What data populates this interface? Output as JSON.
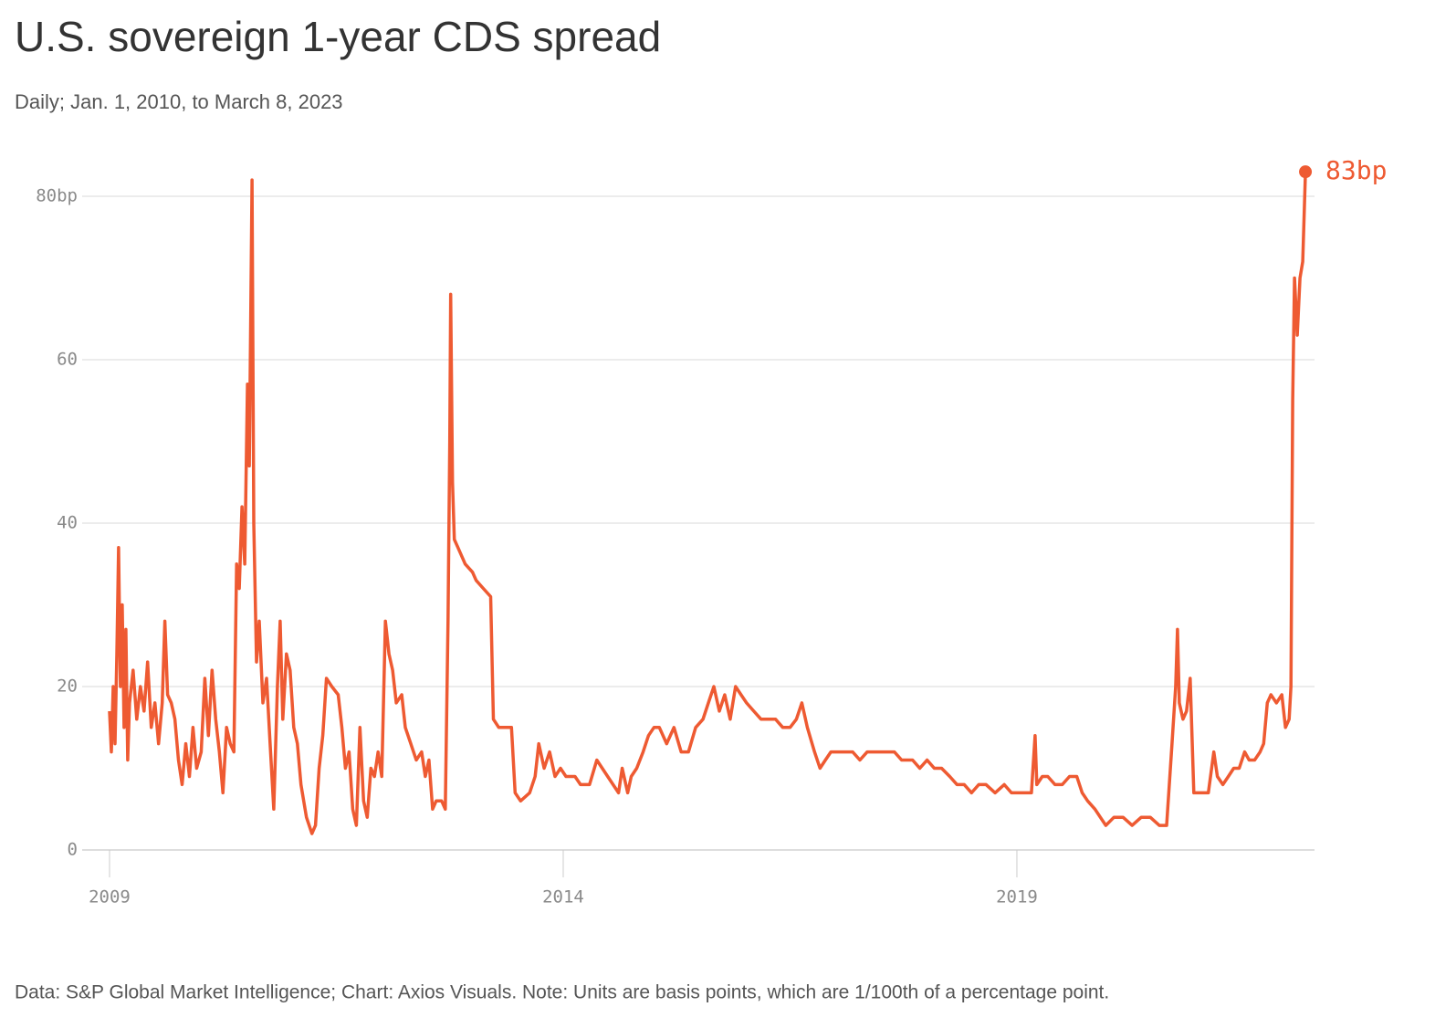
{
  "chart_data": {
    "type": "line",
    "title": "U.S. sovereign 1-year CDS spread",
    "subtitle": "Daily; Jan. 1, 2010, to March 8, 2023",
    "source": "Data: S&P Global Market Intelligence; Chart: Axios Visuals. Note: Units are basis points, which are 1/100th of a percentage point.",
    "end_label": "83bp",
    "color": "#ee5a32",
    "grid": true,
    "xlim": [
      2009,
      2022.28
    ],
    "xticks": [
      2009,
      2014,
      2019
    ],
    "ylim": [
      0,
      80
    ],
    "yticks": [
      0,
      20,
      40,
      60,
      {
        "value": 80,
        "label": "80bp"
      }
    ],
    "x": [
      2009.0,
      2009.02,
      2009.04,
      2009.06,
      2009.08,
      2009.1,
      2009.12,
      2009.14,
      2009.16,
      2009.18,
      2009.2,
      2009.22,
      2009.26,
      2009.3,
      2009.34,
      2009.38,
      2009.42,
      2009.46,
      2009.5,
      2009.54,
      2009.58,
      2009.61,
      2009.64,
      2009.68,
      2009.72,
      2009.76,
      2009.8,
      2009.84,
      2009.88,
      2009.92,
      2009.96,
      2010.01,
      2010.05,
      2010.09,
      2010.13,
      2010.17,
      2010.21,
      2010.25,
      2010.29,
      2010.33,
      2010.37,
      2010.4,
      2010.43,
      2010.46,
      2010.49,
      2010.52,
      2010.54,
      2010.57,
      2010.59,
      2010.62,
      2010.65,
      2010.69,
      2010.73,
      2010.77,
      2010.81,
      2010.85,
      2010.88,
      2010.91,
      2010.95,
      2010.99,
      2011.03,
      2011.07,
      2011.11,
      2011.17,
      2011.23,
      2011.27,
      2011.31,
      2011.35,
      2011.39,
      2011.45,
      2011.52,
      2011.56,
      2011.6,
      2011.64,
      2011.68,
      2011.72,
      2011.76,
      2011.8,
      2011.84,
      2011.88,
      2011.92,
      2011.96,
      2012.0,
      2012.04,
      2012.08,
      2012.12,
      2012.16,
      2012.22,
      2012.26,
      2012.32,
      2012.38,
      2012.44,
      2012.48,
      2012.52,
      2012.56,
      2012.6,
      2012.66,
      2012.7,
      2012.73,
      2012.75,
      2012.76,
      2012.78,
      2012.8,
      2012.84,
      2012.92,
      2013.0,
      2013.04,
      2013.12,
      2013.2,
      2013.23,
      2013.29,
      2013.43,
      2013.47,
      2013.53,
      2013.63,
      2013.69,
      2013.73,
      2013.79,
      2013.85,
      2013.91,
      2013.97,
      2014.03,
      2014.13,
      2014.19,
      2014.29,
      2014.37,
      2014.49,
      2014.61,
      2014.65,
      2014.71,
      2014.75,
      2014.81,
      2014.88,
      2014.94,
      2015.0,
      2015.06,
      2015.14,
      2015.22,
      2015.3,
      2015.38,
      2015.46,
      2015.54,
      2015.6,
      2015.66,
      2015.72,
      2015.78,
      2015.84,
      2015.9,
      2015.96,
      2016.02,
      2016.1,
      2016.18,
      2016.26,
      2016.34,
      2016.42,
      2016.5,
      2016.57,
      2016.63,
      2016.69,
      2016.77,
      2016.83,
      2016.89,
      2016.95,
      2017.03,
      2017.11,
      2017.19,
      2017.27,
      2017.35,
      2017.45,
      2017.55,
      2017.65,
      2017.73,
      2017.79,
      2017.85,
      2017.93,
      2018.01,
      2018.09,
      2018.17,
      2018.26,
      2018.34,
      2018.42,
      2018.5,
      2018.58,
      2018.66,
      2018.76,
      2018.86,
      2018.94,
      2019.02,
      2019.1,
      2019.16,
      2019.2,
      2019.22,
      2019.28,
      2019.34,
      2019.42,
      2019.5,
      2019.58,
      2019.66,
      2019.72,
      2019.78,
      2019.86,
      2019.92,
      2019.98,
      2020.07,
      2020.17,
      2020.27,
      2020.37,
      2020.47,
      2020.57,
      2020.65,
      2020.71,
      2020.75,
      2020.77,
      2020.79,
      2020.83,
      2020.87,
      2020.91,
      2020.95,
      2021.03,
      2021.11,
      2021.17,
      2021.21,
      2021.27,
      2021.33,
      2021.39,
      2021.45,
      2021.51,
      2021.56,
      2021.62,
      2021.68,
      2021.72,
      2021.76,
      2021.8,
      2021.86,
      2021.92,
      2021.96,
      2022.0,
      2022.02,
      2022.04,
      2022.06,
      2022.09,
      2022.12,
      2022.15,
      2022.18
    ],
    "values": [
      17,
      12,
      20,
      13,
      24,
      37,
      20,
      30,
      15,
      27,
      11,
      18,
      22,
      16,
      20,
      17,
      23,
      15,
      18,
      13,
      18,
      28,
      19,
      18,
      16,
      11,
      8,
      13,
      9,
      15,
      10,
      12,
      21,
      14,
      22,
      16,
      12,
      7,
      15,
      13,
      12,
      35,
      32,
      42,
      35,
      57,
      47,
      82,
      40,
      23,
      28,
      18,
      21,
      13,
      5,
      20,
      28,
      16,
      24,
      22,
      15,
      13,
      8,
      4,
      2,
      3,
      10,
      14,
      21,
      20,
      19,
      15,
      10,
      12,
      5,
      3,
      15,
      6,
      4,
      10,
      9,
      12,
      9,
      28,
      24,
      22,
      18,
      19,
      15,
      13,
      11,
      12,
      9,
      11,
      5,
      6,
      6,
      5,
      28,
      50,
      68,
      45,
      38,
      37,
      35,
      34,
      33,
      32,
      31,
      16,
      15,
      15,
      7,
      6,
      7,
      9,
      13,
      10,
      12,
      9,
      10,
      9,
      9,
      8,
      8,
      11,
      9,
      7,
      10,
      7,
      9,
      10,
      12,
      14,
      15,
      15,
      13,
      15,
      12,
      12,
      15,
      16,
      18,
      20,
      17,
      19,
      16,
      20,
      19,
      18,
      17,
      16,
      16,
      16,
      15,
      15,
      16,
      18,
      15,
      12,
      10,
      11,
      12,
      12,
      12,
      12,
      11,
      12,
      12,
      12,
      12,
      11,
      11,
      11,
      10,
      11,
      10,
      10,
      9,
      8,
      8,
      7,
      8,
      8,
      7,
      8,
      7,
      7,
      7,
      7,
      14,
      8,
      9,
      9,
      8,
      8,
      9,
      9,
      7,
      6,
      5,
      4,
      3,
      4,
      4,
      3,
      4,
      4,
      3,
      3,
      13,
      20,
      27,
      18,
      16,
      17,
      21,
      7,
      7,
      7,
      12,
      9,
      8,
      9,
      10,
      10,
      12,
      11,
      11,
      12,
      13,
      18,
      19,
      18,
      19,
      15,
      16,
      20,
      55,
      70,
      63,
      70,
      72,
      83
    ]
  }
}
